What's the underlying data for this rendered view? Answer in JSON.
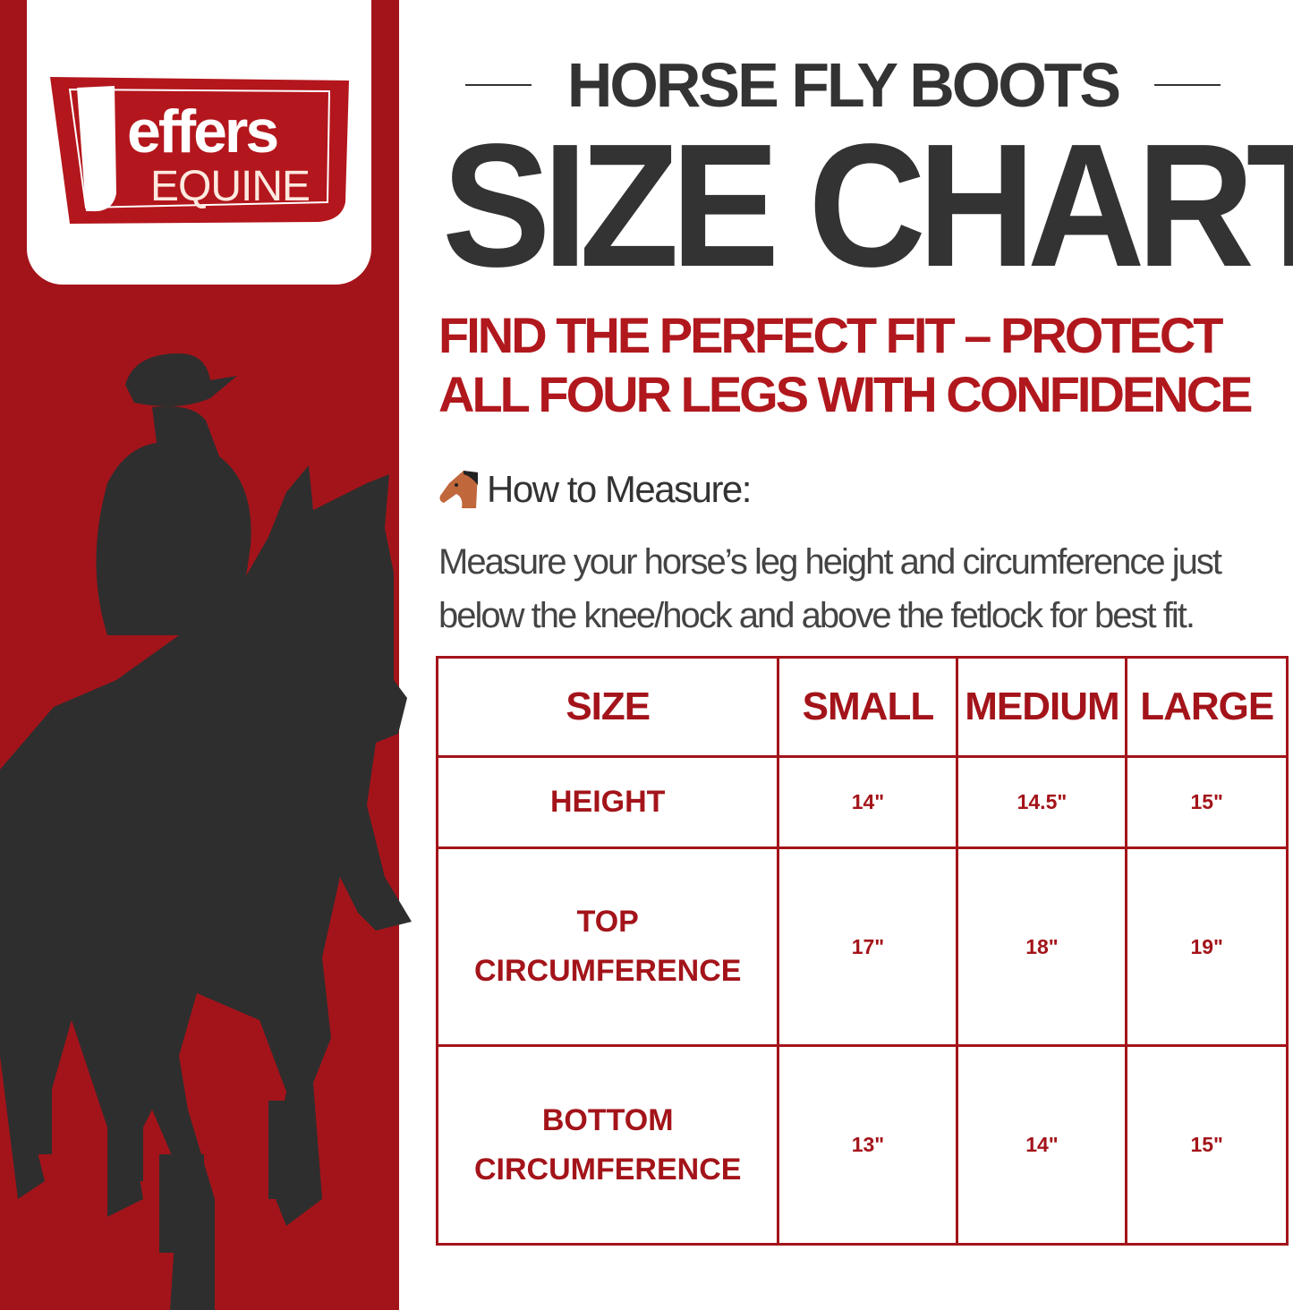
{
  "brand": {
    "logo_text_top": "jeffers",
    "logo_text_bottom": "EQUINE",
    "colors": {
      "primary_red": "#a3141a",
      "text_dark": "#333333"
    }
  },
  "header": {
    "kicker": "HORSE FLY BOOTS",
    "title": "SIZE CHART"
  },
  "subtitle": "FIND THE PERFECT FIT – PROTECT ALL FOUR LEGS WITH CONFIDENCE",
  "how_to": {
    "icon": "horse-face-icon",
    "heading": "How to Measure:",
    "text": "Measure your horse’s leg height and circumference just below the knee/hock and above the fetlock for best fit."
  },
  "table": {
    "headers": [
      "SIZE",
      "SMALL",
      "MEDIUM",
      "LARGE"
    ],
    "rows": [
      {
        "label": "HEIGHT",
        "values": [
          "14\"",
          "14.5\"",
          "15\""
        ]
      },
      {
        "label": "TOP CIRCUMFERENCE",
        "values": [
          "17\"",
          "18\"",
          "19\""
        ]
      },
      {
        "label": "BOTTOM CIRCUMFERENCE",
        "values": [
          "13\"",
          "14\"",
          "15\""
        ]
      }
    ]
  }
}
